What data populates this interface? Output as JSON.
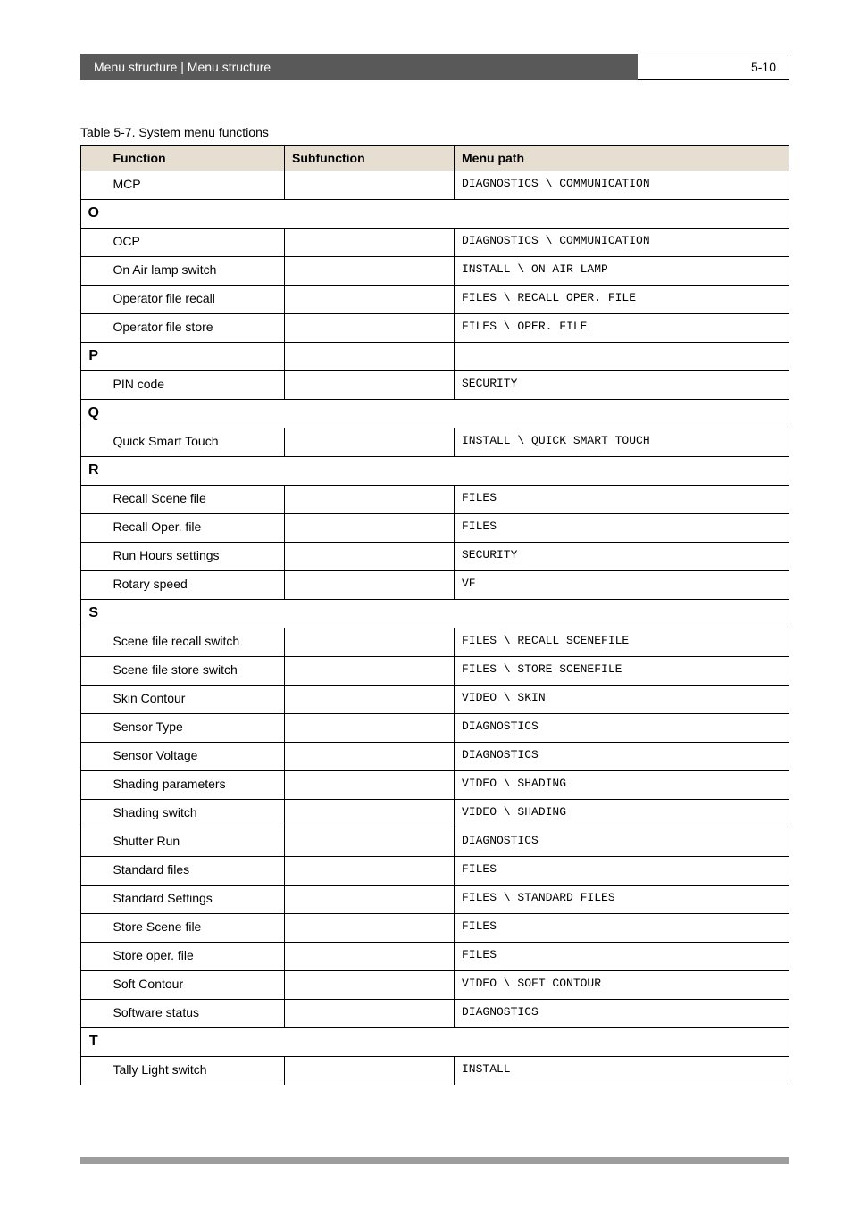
{
  "header": {
    "breadcrumb": "Menu structure | Menu structure",
    "page_number": "5-10"
  },
  "table_caption": "Table 5-7.  System menu functions",
  "columns": {
    "function": "Function",
    "subfunction": "Subfunction",
    "menu_path": "Menu path"
  },
  "rows": [
    {
      "letter": "",
      "function": "MCP",
      "subfunction": "",
      "menu_path": "DIAGNOSTICS \\ COMMUNICATION"
    },
    {
      "section": "O"
    },
    {
      "letter": "",
      "function": "OCP",
      "subfunction": "",
      "menu_path": "DIAGNOSTICS \\ COMMUNICATION"
    },
    {
      "letter": "",
      "function": "On Air lamp switch",
      "subfunction": "",
      "menu_path": "INSTALL \\ ON AIR LAMP"
    },
    {
      "letter": "",
      "function": "Operator file recall",
      "subfunction": "",
      "menu_path": "FILES \\ RECALL OPER. FILE"
    },
    {
      "letter": "",
      "function": "Operator file store",
      "subfunction": "",
      "menu_path": "FILES \\ OPER. FILE"
    },
    {
      "section": "P"
    },
    {
      "letter": "",
      "function": "PIN code",
      "subfunction": "",
      "menu_path": "SECURITY"
    },
    {
      "section": "Q"
    },
    {
      "letter": "",
      "function": "Quick Smart Touch",
      "subfunction": "",
      "menu_path": "INSTALL \\ QUICK SMART TOUCH"
    },
    {
      "section": "R"
    },
    {
      "letter": "",
      "function": "Recall Scene file",
      "subfunction": "",
      "menu_path": "FILES"
    },
    {
      "letter": "",
      "function": "Recall Oper. file",
      "subfunction": "",
      "menu_path": "FILES"
    },
    {
      "letter": "",
      "function": "Run Hours settings",
      "subfunction": "",
      "menu_path": "SECURITY"
    },
    {
      "letter": "",
      "function": "Rotary speed",
      "subfunction": "",
      "menu_path": "VF"
    },
    {
      "section": "S"
    },
    {
      "letter": "",
      "function": "Scene file recall switch",
      "subfunction": "",
      "menu_path": "FILES \\ RECALL SCENEFILE"
    },
    {
      "letter": "",
      "function": "Scene file store switch",
      "subfunction": "",
      "menu_path": "FILES \\ STORE SCENEFILE"
    },
    {
      "letter": "",
      "function": "Skin Contour",
      "subfunction": "",
      "menu_path": "VIDEO \\ SKIN"
    },
    {
      "letter": "",
      "function": "Sensor Type",
      "subfunction": "",
      "menu_path": "DIAGNOSTICS"
    },
    {
      "letter": "",
      "function": "Sensor Voltage",
      "subfunction": "",
      "menu_path": "DIAGNOSTICS"
    },
    {
      "letter": "",
      "function": "Shading parameters",
      "subfunction": "",
      "menu_path": "VIDEO \\ SHADING"
    },
    {
      "letter": "",
      "function": "Shading switch",
      "subfunction": "",
      "menu_path": "VIDEO \\ SHADING"
    },
    {
      "letter": "",
      "function": "Shutter Run",
      "subfunction": "",
      "menu_path": "DIAGNOSTICS"
    },
    {
      "letter": "",
      "function": "Standard files",
      "subfunction": "",
      "menu_path": "FILES"
    },
    {
      "letter": "",
      "function": "Standard Settings",
      "subfunction": "",
      "menu_path": "FILES \\ STANDARD FILES"
    },
    {
      "letter": "",
      "function": "Store Scene file",
      "subfunction": "",
      "menu_path": "FILES"
    },
    {
      "letter": "",
      "function": "Store oper. file",
      "subfunction": "",
      "menu_path": "FILES"
    },
    {
      "letter": "",
      "function": "Soft Contour",
      "subfunction": "",
      "menu_path": "VIDEO \\ SOFT CONTOUR"
    },
    {
      "letter": "",
      "function": "Software status",
      "subfunction": "",
      "menu_path": "DIAGNOSTICS"
    },
    {
      "section": "T"
    },
    {
      "letter": "",
      "function": "Tally Light switch",
      "subfunction": "",
      "menu_path": "INSTALL"
    }
  ],
  "styling": {
    "header_bg": "#595959",
    "header_text": "#ffffff",
    "th_bg": "#e6ded0",
    "border_color": "#000000",
    "body_font_size": 14,
    "mono_font_size": 13,
    "footer_bar_color": "#9d9d9d"
  }
}
